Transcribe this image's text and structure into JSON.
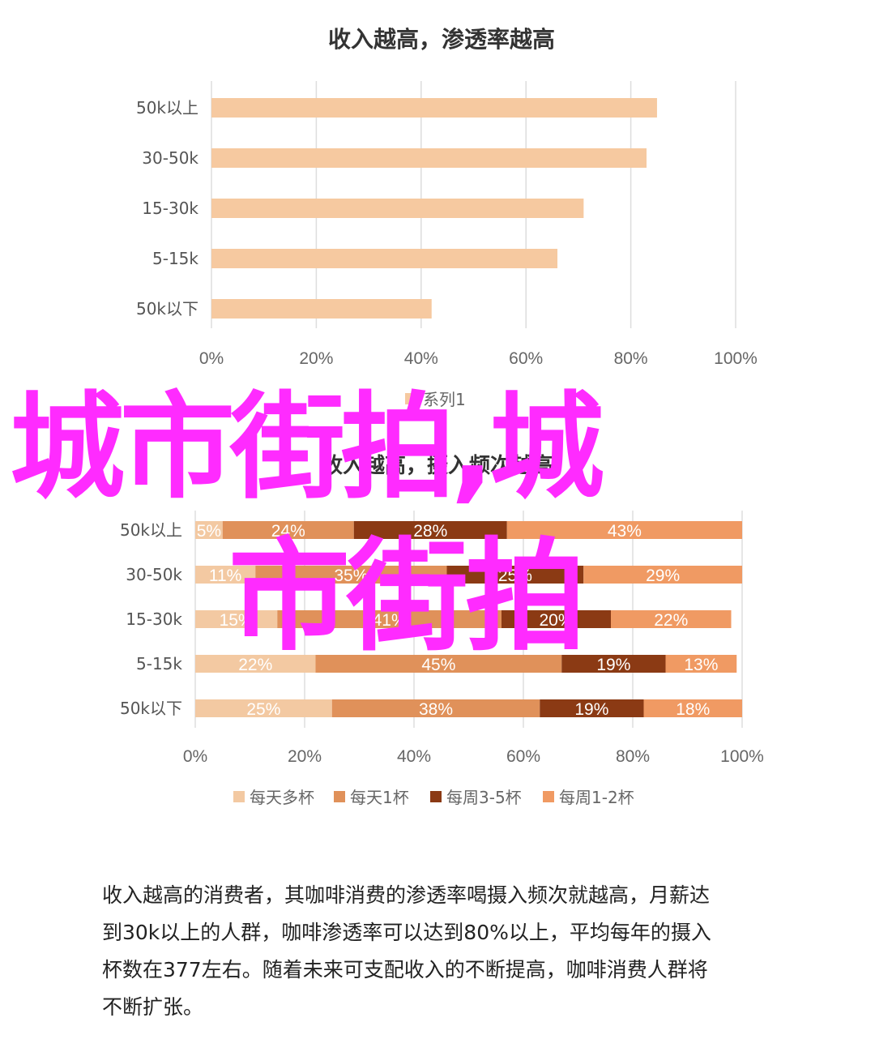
{
  "chart_data": [
    {
      "type": "bar",
      "orientation": "horizontal",
      "title": "收入越高，渗透率越高",
      "categories": [
        "50k以上",
        "30-50k",
        "15-30k",
        "5-15k",
        "50k以下"
      ],
      "series": [
        {
          "name": "系列1",
          "values": [
            85,
            83,
            71,
            66,
            42
          ]
        }
      ],
      "xlim": [
        0,
        100
      ],
      "xticks": [
        "0%",
        "20%",
        "40%",
        "60%",
        "80%",
        "100%"
      ],
      "grid": true,
      "legend_position": "bottom",
      "colors": [
        "#f6c9a0"
      ]
    },
    {
      "type": "bar",
      "orientation": "horizontal",
      "stacked": true,
      "title": "收入越高，摄入频次越高",
      "categories": [
        "50k以上",
        "30-50k",
        "15-30k",
        "5-15k",
        "50k以下"
      ],
      "series": [
        {
          "name": "每天多杯",
          "values": [
            5,
            11,
            15,
            22,
            25
          ]
        },
        {
          "name": "每天1杯",
          "values": [
            24,
            35,
            41,
            45,
            38
          ]
        },
        {
          "name": "每周3-5杯",
          "values": [
            28,
            25,
            20,
            19,
            19
          ]
        },
        {
          "name": "每周1-2杯",
          "values": [
            43,
            29,
            22,
            13,
            18
          ]
        }
      ],
      "xlim": [
        0,
        100
      ],
      "xticks": [
        "0%",
        "20%",
        "40%",
        "60%",
        "80%",
        "100%"
      ],
      "grid": true,
      "legend_position": "bottom",
      "colors": [
        "#f3c9a2",
        "#e0915a",
        "#8b3a14",
        "#f09a63"
      ]
    }
  ],
  "overlay": {
    "line1": "城市街拍,城",
    "line2": "市街拍",
    "color": "#ff2bff"
  },
  "caption": {
    "lines": [
      "收入越高的消费者，其咖啡消费的渗透率喝摄入频次就越高，月薪达",
      "到30k以上的人群，咖啡渗透率可以达到80%以上，平均每年的摄入",
      "杯数在377左右。随着未来可支配收入的不断提高，咖啡消费人群将",
      "不断扩张。"
    ]
  }
}
